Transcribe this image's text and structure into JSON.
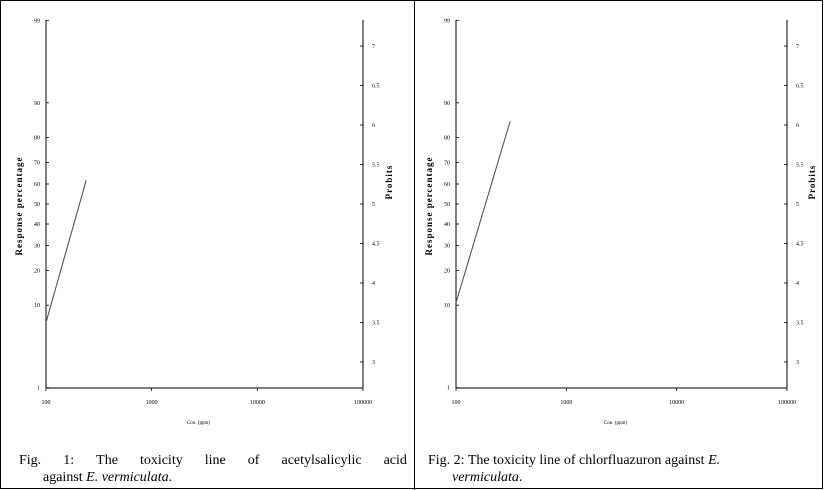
{
  "chart_data": [
    {
      "type": "line",
      "xlabel": "Con. (ppm)",
      "ylabel": "Response percentage",
      "y2label": "Probits",
      "x_scale": "log",
      "xlim": [
        100,
        100000
      ],
      "x_ticks": [
        "100",
        "1000",
        "10000",
        "100000"
      ],
      "y_ticks": [
        "1",
        "10",
        "20",
        "30",
        "40",
        "50",
        "60",
        "70",
        "80",
        "90",
        "99"
      ],
      "y2_ticks": [
        "3",
        "3.5",
        "4",
        "4.5",
        "5",
        "5.5",
        "6",
        "6.5",
        "7"
      ],
      "ylim_probit": [
        2.67,
        7.33
      ],
      "series": [
        {
          "x": [
            100,
            240
          ],
          "y_probit": [
            3.5,
            5.3
          ]
        }
      ]
    },
    {
      "type": "line",
      "xlabel": "Con. (ppm)",
      "ylabel": "Response percentage",
      "y2label": "Probits",
      "x_scale": "log",
      "xlim": [
        100,
        100000
      ],
      "x_ticks": [
        "100",
        "1000",
        "10000",
        "100000"
      ],
      "y_ticks": [
        "1",
        "10",
        "20",
        "30",
        "40",
        "50",
        "60",
        "70",
        "80",
        "90",
        "99"
      ],
      "y2_ticks": [
        "3",
        "3.5",
        "4",
        "4.5",
        "5",
        "5.5",
        "6",
        "6.5",
        "7"
      ],
      "ylim_probit": [
        2.67,
        7.33
      ],
      "series": [
        {
          "x": [
            100,
            310
          ],
          "y_probit": [
            3.75,
            6.05
          ]
        }
      ]
    }
  ],
  "captions": [
    {
      "line1_words": [
        "Fig.",
        "1:",
        "The",
        "toxicity",
        "line",
        "of",
        "acetylsalicylic",
        "acid"
      ],
      "line2_prefix": "against ",
      "line2_italic": "E. vermiculata",
      "line2_suffix": "."
    },
    {
      "line1_text": "Fig. 2: The toxicity line of chlorfluazuron against ",
      "line1_italic": "E.",
      "line2_italic": "vermiculata",
      "line2_suffix": "."
    }
  ]
}
